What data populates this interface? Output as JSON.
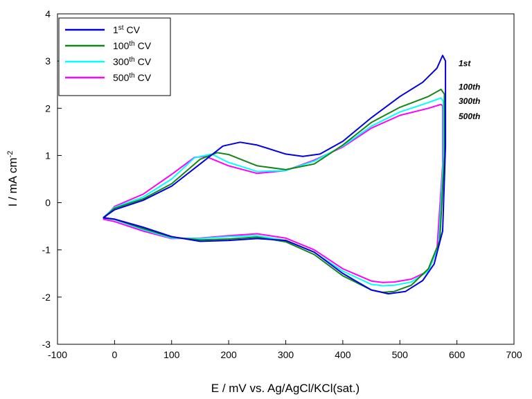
{
  "chart_data": {
    "type": "line",
    "xlabel": "E / mV vs. Ag/AgCl/KCl(sat.)",
    "ylabel_main": "I / mA cm",
    "ylabel_sup": "-2",
    "xlim": [
      -100,
      700
    ],
    "ylim": [
      -3,
      4
    ],
    "x_ticks": [
      -100,
      0,
      100,
      200,
      300,
      400,
      500,
      600,
      700
    ],
    "y_ticks": [
      -3,
      -2,
      -1,
      0,
      1,
      2,
      3,
      4
    ],
    "grid": false,
    "legend_position": "top-left",
    "series": [
      {
        "name": "1st CV",
        "legend_main": "1",
        "legend_sup": "st",
        "legend_tail": " CV",
        "color": "#0000e0",
        "annotation": "1st",
        "points": [
          [
            -20,
            -0.32
          ],
          [
            0,
            -0.15
          ],
          [
            50,
            0.05
          ],
          [
            100,
            0.35
          ],
          [
            150,
            0.82
          ],
          [
            190,
            1.2
          ],
          [
            220,
            1.28
          ],
          [
            250,
            1.22
          ],
          [
            300,
            1.03
          ],
          [
            330,
            0.98
          ],
          [
            360,
            1.03
          ],
          [
            400,
            1.3
          ],
          [
            450,
            1.8
          ],
          [
            500,
            2.25
          ],
          [
            540,
            2.55
          ],
          [
            565,
            2.85
          ],
          [
            575,
            3.12
          ],
          [
            580,
            3.0
          ],
          [
            580,
            1.2
          ],
          [
            575,
            -0.6
          ],
          [
            560,
            -1.3
          ],
          [
            540,
            -1.65
          ],
          [
            510,
            -1.88
          ],
          [
            480,
            -1.93
          ],
          [
            450,
            -1.85
          ],
          [
            400,
            -1.5
          ],
          [
            350,
            -1.05
          ],
          [
            300,
            -0.8
          ],
          [
            250,
            -0.76
          ],
          [
            200,
            -0.8
          ],
          [
            150,
            -0.82
          ],
          [
            100,
            -0.72
          ],
          [
            50,
            -0.52
          ],
          [
            0,
            -0.35
          ],
          [
            -20,
            -0.32
          ]
        ]
      },
      {
        "name": "100th CV",
        "legend_main": "100",
        "legend_sup": "th",
        "legend_tail": " CV",
        "color": "#138613",
        "annotation": "100th",
        "points": [
          [
            -20,
            -0.32
          ],
          [
            0,
            -0.12
          ],
          [
            50,
            0.08
          ],
          [
            100,
            0.4
          ],
          [
            150,
            0.92
          ],
          [
            180,
            1.06
          ],
          [
            200,
            1.02
          ],
          [
            250,
            0.78
          ],
          [
            300,
            0.7
          ],
          [
            350,
            0.82
          ],
          [
            400,
            1.22
          ],
          [
            450,
            1.7
          ],
          [
            500,
            2.02
          ],
          [
            550,
            2.25
          ],
          [
            572,
            2.4
          ],
          [
            578,
            2.3
          ],
          [
            578,
            1.0
          ],
          [
            570,
            -0.8
          ],
          [
            550,
            -1.4
          ],
          [
            520,
            -1.75
          ],
          [
            490,
            -1.88
          ],
          [
            470,
            -1.9
          ],
          [
            450,
            -1.85
          ],
          [
            400,
            -1.55
          ],
          [
            350,
            -1.1
          ],
          [
            300,
            -0.83
          ],
          [
            250,
            -0.73
          ],
          [
            200,
            -0.77
          ],
          [
            150,
            -0.79
          ],
          [
            100,
            -0.73
          ],
          [
            50,
            -0.55
          ],
          [
            0,
            -0.35
          ],
          [
            -20,
            -0.32
          ]
        ]
      },
      {
        "name": "300th CV",
        "legend_main": "300",
        "legend_sup": "th",
        "legend_tail": " CV",
        "color": "#00ffff",
        "annotation": "300th",
        "points": [
          [
            -20,
            -0.32
          ],
          [
            0,
            -0.1
          ],
          [
            50,
            0.12
          ],
          [
            100,
            0.5
          ],
          [
            140,
            0.95
          ],
          [
            170,
            1.03
          ],
          [
            200,
            0.85
          ],
          [
            250,
            0.66
          ],
          [
            300,
            0.68
          ],
          [
            350,
            0.88
          ],
          [
            400,
            1.2
          ],
          [
            450,
            1.62
          ],
          [
            500,
            1.92
          ],
          [
            550,
            2.12
          ],
          [
            572,
            2.22
          ],
          [
            576,
            2.15
          ],
          [
            576,
            0.9
          ],
          [
            568,
            -0.9
          ],
          [
            550,
            -1.45
          ],
          [
            520,
            -1.68
          ],
          [
            490,
            -1.75
          ],
          [
            470,
            -1.76
          ],
          [
            450,
            -1.73
          ],
          [
            400,
            -1.45
          ],
          [
            350,
            -1.05
          ],
          [
            300,
            -0.8
          ],
          [
            250,
            -0.7
          ],
          [
            200,
            -0.72
          ],
          [
            150,
            -0.76
          ],
          [
            100,
            -0.75
          ],
          [
            50,
            -0.57
          ],
          [
            0,
            -0.36
          ],
          [
            -20,
            -0.32
          ]
        ]
      },
      {
        "name": "500th CV",
        "legend_main": "500",
        "legend_sup": "th",
        "legend_tail": " CV",
        "color": "#ff00ff",
        "annotation": "500th",
        "points": [
          [
            -20,
            -0.35
          ],
          [
            0,
            -0.08
          ],
          [
            50,
            0.18
          ],
          [
            100,
            0.6
          ],
          [
            140,
            0.96
          ],
          [
            160,
            0.98
          ],
          [
            200,
            0.78
          ],
          [
            250,
            0.62
          ],
          [
            300,
            0.68
          ],
          [
            350,
            0.9
          ],
          [
            400,
            1.18
          ],
          [
            450,
            1.58
          ],
          [
            500,
            1.85
          ],
          [
            550,
            2.0
          ],
          [
            572,
            2.08
          ],
          [
            575,
            2.05
          ],
          [
            575,
            0.8
          ],
          [
            565,
            -1.0
          ],
          [
            550,
            -1.45
          ],
          [
            520,
            -1.62
          ],
          [
            490,
            -1.68
          ],
          [
            470,
            -1.69
          ],
          [
            450,
            -1.66
          ],
          [
            400,
            -1.4
          ],
          [
            350,
            -1.0
          ],
          [
            300,
            -0.75
          ],
          [
            250,
            -0.66
          ],
          [
            200,
            -0.7
          ],
          [
            150,
            -0.75
          ],
          [
            100,
            -0.76
          ],
          [
            50,
            -0.6
          ],
          [
            0,
            -0.4
          ],
          [
            -20,
            -0.35
          ]
        ]
      }
    ]
  }
}
